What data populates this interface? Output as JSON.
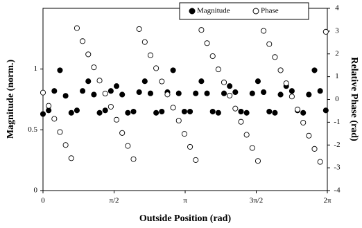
{
  "chart_data": {
    "type": "scatter",
    "xlabel": "Outside Position (rad)",
    "ylabel": "Magnitude (norm.)",
    "y2label": "Relative Phase (rad)",
    "x": [
      0,
      0.125,
      0.25,
      0.375,
      0.5,
      0.625,
      0.75,
      0.875,
      1,
      1.125,
      1.25,
      1.375,
      1.5,
      1.625,
      1.75,
      1.875,
      2,
      2.125,
      2.25,
      2.375,
      2.5,
      2.625,
      2.75,
      2.875,
      3,
      3.125,
      3.25,
      3.375,
      3.5,
      3.625,
      3.75,
      3.875,
      4,
      4.125,
      4.25,
      4.375,
      4.5,
      4.625,
      4.75,
      4.875,
      5,
      5.125,
      5.25,
      5.375,
      5.5,
      5.625,
      5.75,
      5.875,
      6,
      6.125,
      6.25
    ],
    "series": [
      {
        "name": "Magnitude",
        "marker": "filled",
        "color": "#000000",
        "axis": "y",
        "values": [
          0.63,
          0.66,
          0.82,
          0.99,
          0.78,
          0.64,
          0.66,
          0.82,
          0.9,
          0.79,
          0.64,
          0.66,
          0.82,
          0.86,
          0.79,
          0.64,
          0.65,
          0.81,
          0.9,
          0.8,
          0.64,
          0.65,
          0.81,
          0.99,
          0.8,
          0.65,
          0.65,
          0.8,
          0.9,
          0.8,
          0.65,
          0.64,
          0.8,
          0.86,
          0.81,
          0.65,
          0.64,
          0.8,
          0.9,
          0.81,
          0.65,
          0.64,
          0.79,
          0.86,
          0.82,
          0.66,
          0.64,
          0.79,
          0.99,
          0.82,
          0.66
        ]
      },
      {
        "name": "Phase",
        "marker": "open",
        "color": "#000000",
        "axis": "y2",
        "values": [
          0.3,
          -0.28,
          -0.85,
          -1.43,
          -2.0,
          -2.58,
          3.13,
          2.56,
          1.98,
          1.41,
          0.83,
          0.26,
          -0.32,
          -0.89,
          -1.47,
          -2.04,
          -2.62,
          3.09,
          2.52,
          1.94,
          1.37,
          0.79,
          0.22,
          -0.36,
          -0.93,
          -1.51,
          -2.08,
          -2.66,
          3.05,
          2.47,
          1.9,
          1.32,
          0.75,
          0.17,
          -0.4,
          -0.98,
          -1.55,
          -2.13,
          -2.7,
          3.01,
          2.43,
          1.86,
          1.28,
          0.71,
          0.13,
          -0.44,
          -1.02,
          -1.59,
          -2.17,
          -2.74,
          2.97
        ]
      }
    ],
    "xlim": [
      0,
      6.2832
    ],
    "xticks": [
      0,
      {
        "value": 1.5708,
        "label": "π/2"
      },
      {
        "value": 3.1416,
        "label": "π"
      },
      {
        "value": 4.7124,
        "label": "3π/2"
      },
      {
        "value": 6.2832,
        "label": "2π"
      }
    ],
    "ylim": [
      0,
      1.5
    ],
    "yticks": [
      0,
      0.5,
      1
    ],
    "y2lim": [
      -4,
      4
    ],
    "y2ticks": [
      -4,
      -3,
      -2,
      -1,
      0,
      1,
      2,
      3,
      4
    ],
    "legend": "top-right"
  }
}
